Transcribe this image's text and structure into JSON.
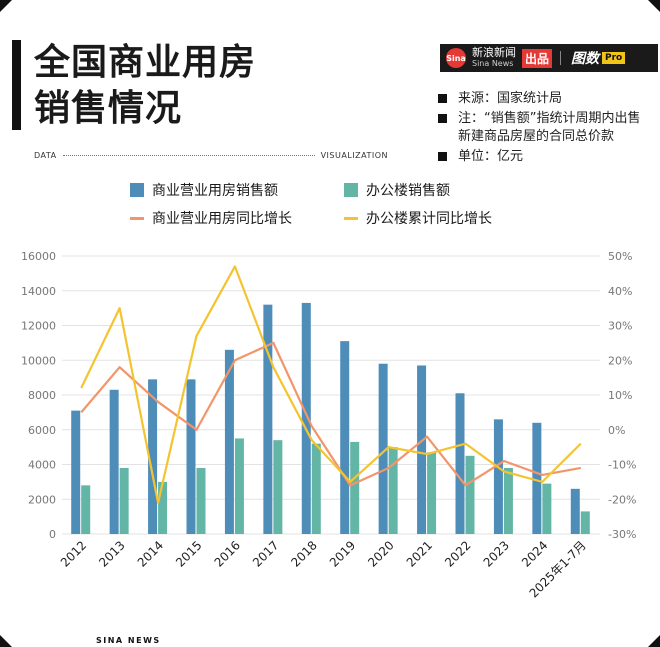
{
  "title_lines": [
    "全国商业用房",
    "销售情况"
  ],
  "brand": {
    "logo_text": "Sina",
    "name_cn": "新浪新闻",
    "name_en": "Sina News",
    "chu_label": "出品",
    "tushu_label": "图数",
    "pro_label": "Pro"
  },
  "notes": [
    "来源：国家统计局",
    "注：“销售额”指统计周期内出售新建商品房屋的合同总价款",
    "单位：亿元"
  ],
  "header_left": "DATA",
  "header_right": "VISUALIZATION",
  "footer": "SINA NEWS",
  "colors": {
    "bar_commercial": "#4f8db9",
    "bar_office": "#63b5a5",
    "line_commercial": "#f2956a",
    "line_office": "#f4c430"
  },
  "chart_data": {
    "type": "bar",
    "categories": [
      "2012",
      "2013",
      "2014",
      "2015",
      "2016",
      "2017",
      "2018",
      "2019",
      "2020",
      "2021",
      "2022",
      "2023",
      "2024",
      "2025年1-7月"
    ],
    "series": [
      {
        "name": "商业营业用房销售额",
        "kind": "bar",
        "axis": "left",
        "values": [
          7100,
          8300,
          8900,
          8900,
          10600,
          13200,
          13300,
          11100,
          9800,
          9700,
          8100,
          6600,
          6400,
          2600
        ]
      },
      {
        "name": "办公楼销售额",
        "kind": "bar",
        "axis": "left",
        "values": [
          2800,
          3800,
          3000,
          3800,
          5500,
          5400,
          5200,
          5300,
          5000,
          4700,
          4500,
          3800,
          2900,
          1300
        ]
      },
      {
        "name": "商业营业用房同比增长",
        "kind": "line",
        "axis": "right",
        "values": [
          5,
          18,
          8,
          0,
          20,
          25,
          1,
          -16,
          -11,
          -2,
          -16,
          -9,
          -13,
          -11
        ]
      },
      {
        "name": "办公楼累计同比增长",
        "kind": "line",
        "axis": "right",
        "values": [
          12,
          35,
          -21,
          27,
          47,
          18,
          -3,
          -15,
          -5,
          -7,
          -4,
          -12,
          -15,
          -4
        ]
      }
    ],
    "y_left": {
      "min": 0,
      "max": 16000,
      "ticks": [
        "0",
        "2000",
        "4000",
        "6000",
        "8000",
        "10000",
        "12000",
        "14000",
        "16000"
      ]
    },
    "y_right": {
      "min": -30,
      "max": 50,
      "ticks": [
        "-30%",
        "-20%",
        "-10%",
        "0%",
        "10%",
        "20%",
        "30%",
        "40%",
        "50%"
      ]
    },
    "grid": true,
    "legend_position": "top"
  }
}
